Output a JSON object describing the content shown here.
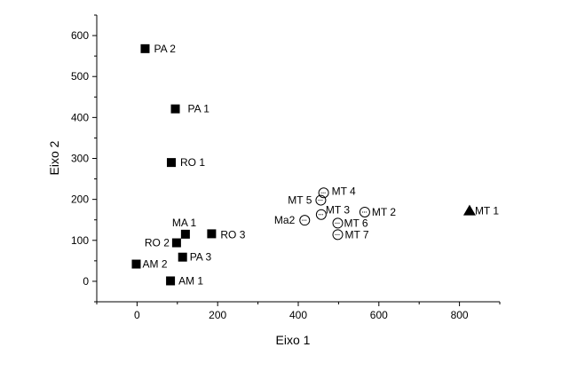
{
  "chart_data": {
    "type": "scatter",
    "title": "",
    "xlabel": "Eixo 1",
    "ylabel": "Eixo 2",
    "xlim": [
      -100,
      900
    ],
    "ylim": [
      -50,
      650
    ],
    "xticks": [
      "0",
      "200",
      "400",
      "600",
      "800"
    ],
    "yticks": [
      "0",
      "100",
      "200",
      "300",
      "400",
      "500",
      "600"
    ],
    "grid": false,
    "legend": "none",
    "points": [
      {
        "label": "PA 2",
        "x": 20,
        "y": 568,
        "marker": "square"
      },
      {
        "label": "PA 1",
        "x": 95,
        "y": 421,
        "marker": "square"
      },
      {
        "label": "RO 1",
        "x": 85,
        "y": 290,
        "marker": "square"
      },
      {
        "label": "MA 1",
        "x": 120,
        "y": 115,
        "marker": "square"
      },
      {
        "label": "RO 3",
        "x": 185,
        "y": 116,
        "marker": "square"
      },
      {
        "label": "RO 2",
        "x": 98,
        "y": 94,
        "marker": "square"
      },
      {
        "label": "PA 3",
        "x": 113,
        "y": 59,
        "marker": "square"
      },
      {
        "label": "AM 2",
        "x": -2,
        "y": 42,
        "marker": "square"
      },
      {
        "label": "AM 1",
        "x": 83,
        "y": 1,
        "marker": "square"
      },
      {
        "label": "MT 4",
        "x": 463,
        "y": 216,
        "marker": "dotted-circle"
      },
      {
        "label": "MT 5",
        "x": 456,
        "y": 198,
        "marker": "dotted-circle"
      },
      {
        "label": "MT 3",
        "x": 457,
        "y": 163,
        "marker": "dotted-circle"
      },
      {
        "label": "MT 2",
        "x": 565,
        "y": 169,
        "marker": "dotted-circle"
      },
      {
        "label": "Ma2",
        "x": 416,
        "y": 149,
        "marker": "dotted-circle"
      },
      {
        "label": "MT 6",
        "x": 498,
        "y": 142,
        "marker": "dotted-circle"
      },
      {
        "label": "MT 7",
        "x": 498,
        "y": 114,
        "marker": "dotted-circle"
      },
      {
        "label": "MT 1",
        "x": 825,
        "y": 172,
        "marker": "triangle"
      }
    ]
  }
}
